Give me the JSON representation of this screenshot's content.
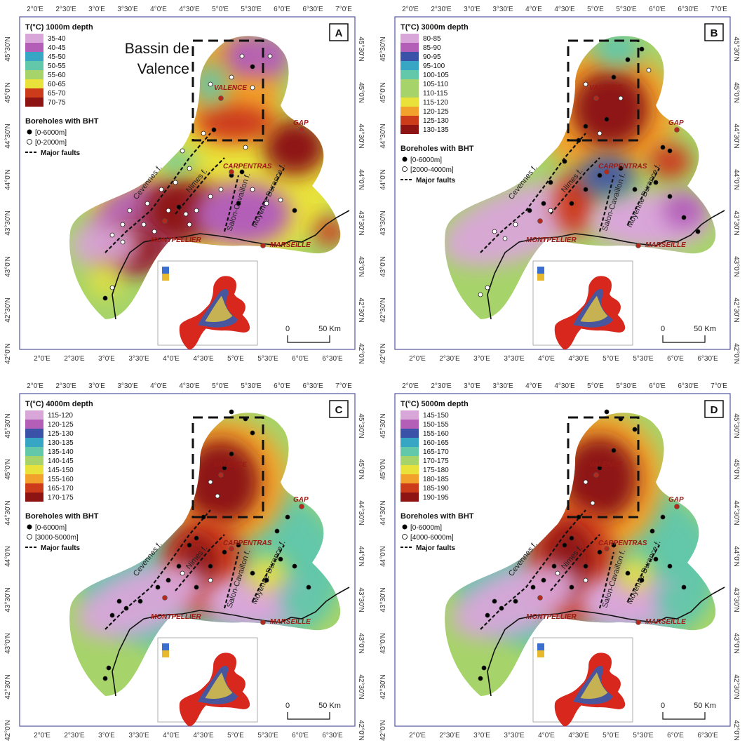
{
  "overlay_label": [
    "Bassin de",
    "Valence"
  ],
  "lon_ticks_top": [
    "2°0'E",
    "2°30'E",
    "3°0'E",
    "3°30'E",
    "4°0'E",
    "4°30'E",
    "5°0'E",
    "5°30'E",
    "6°0'E",
    "6°30'E",
    "7°0'E"
  ],
  "lon_ticks_bottom": [
    "2°0'E",
    "2°30'E",
    "3°0'E",
    "3°30'E",
    "4°0'E",
    "4°30'E",
    "5°0'E",
    "5°30'E",
    "6°0'E",
    "6°30'E"
  ],
  "lat_ticks": [
    "45°30'N",
    "45°0'N",
    "44°30'N",
    "44°0'N",
    "43°30'N",
    "43°0'N",
    "42°30'N",
    "42°0'N"
  ],
  "cities": {
    "valence": "VALENCE",
    "gap": "GAP",
    "carpentras": "CARPENTRAS",
    "montpellier": "MONTPELLIER",
    "marseille": "MARSEILLE"
  },
  "faults": {
    "cevennes": "Cevennes f.",
    "nimes": "Nimes f.",
    "salon": "Salon-Cavaillon f.",
    "durance": "Moyenne Durance f."
  },
  "scale": {
    "zero": "0",
    "label": "50 Km"
  },
  "legend_titles": {
    "boreholes": "Boreholes with BHT",
    "faults": "Major faults",
    "all_range": "[0-6000m]"
  },
  "colors": [
    "#d9a6d9",
    "#b35fb8",
    "#3a52a8",
    "#36a6c4",
    "#63c7a9",
    "#a7d46a",
    "#e8e23a",
    "#f2a22c",
    "#cc3b1a",
    "#8e1414"
  ],
  "panels": [
    {
      "letter": "A",
      "title": "T(°C) 1000m depth",
      "ranges": [
        "35-40",
        "40-45",
        "45-50",
        "50-55",
        "55-60",
        "60-65",
        "65-70",
        "70-75"
      ],
      "depth_range": "[0-2000m]"
    },
    {
      "letter": "B",
      "title": "T(°C) 3000m depth",
      "ranges": [
        "80-85",
        "85-90",
        "90-95",
        "95-100",
        "100-105",
        "105-110",
        "110-115",
        "115-120",
        "120-125",
        "125-130",
        "130-135"
      ],
      "depth_range": "[2000-4000m]"
    },
    {
      "letter": "C",
      "title": "T(°C) 4000m depth",
      "ranges": [
        "115-120",
        "120-125",
        "125-130",
        "130-135",
        "135-140",
        "140-145",
        "145-150",
        "155-160",
        "165-170",
        "170-175"
      ],
      "depth_range": "[3000-5000m]"
    },
    {
      "letter": "D",
      "title": "T(°C) 5000m depth",
      "ranges": [
        "145-150",
        "150-155",
        "155-160",
        "160-165",
        "165-170",
        "170-175",
        "175-180",
        "180-185",
        "185-190",
        "190-195"
      ],
      "depth_range": "[4000-6000m]"
    }
  ]
}
